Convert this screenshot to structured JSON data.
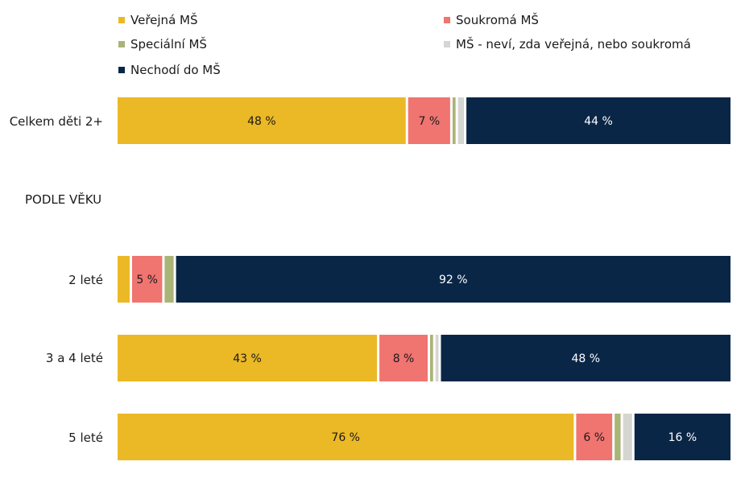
{
  "chart_data": {
    "type": "bar",
    "orientation": "horizontal",
    "stacked": true,
    "xlim": [
      0,
      100
    ],
    "legend": "top",
    "series": [
      {
        "key": "verejna",
        "name": "Veřejná MŠ",
        "color": "#EBB826",
        "label_color": "#1a1a1a"
      },
      {
        "key": "soukroma",
        "name": "Soukromá MŠ",
        "color": "#F07470",
        "label_color": "#1a1a1a"
      },
      {
        "key": "specialni",
        "name": "Speciální MŠ",
        "color": "#A9B477",
        "label_color": "#1a1a1a"
      },
      {
        "key": "nevi",
        "name": "MŠ - neví, zda veřejná, nebo soukromá",
        "color": "#D5D5D2",
        "label_color": "#1a1a1a"
      },
      {
        "key": "nechodi",
        "name": "Nechodí do MŠ",
        "color": "#0A2647",
        "label_color": "#ffffff"
      }
    ],
    "rows": [
      {
        "label": "Celkem děti 2+",
        "values": [
          48,
          7,
          0.5,
          1,
          44
        ],
        "data_labels": [
          "48 %",
          "7 %",
          "",
          "",
          "44 %"
        ]
      },
      {
        "label": "2 leté",
        "values": [
          2,
          5,
          1.5,
          0,
          92
        ],
        "data_labels": [
          "",
          "5 %",
          "",
          "",
          "92 %"
        ]
      },
      {
        "label": "3 a 4 leté",
        "values": [
          43,
          8,
          0.5,
          0.5,
          48
        ],
        "data_labels": [
          "43 %",
          "8 %",
          "",
          "",
          "48 %"
        ]
      },
      {
        "label": "5 leté",
        "values": [
          76,
          6,
          1,
          1.5,
          16
        ],
        "data_labels": [
          "76 %",
          "6 %",
          "",
          "",
          "16 %"
        ]
      }
    ],
    "section_label": "PODLE VĚKU"
  }
}
